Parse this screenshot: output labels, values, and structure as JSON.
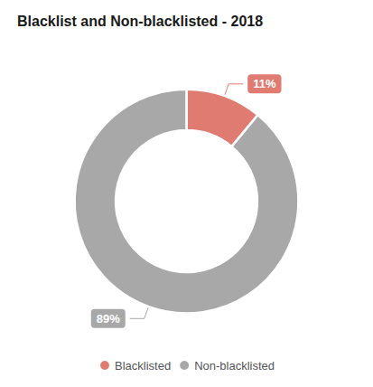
{
  "chart_data": {
    "type": "donut",
    "title": "Blacklist and Non-blacklisted - 2018",
    "categories": [
      "Blacklisted",
      "Non-blacklisted"
    ],
    "values": [
      11,
      89
    ],
    "value_labels": [
      "11%",
      "89%"
    ],
    "colors": [
      "#e07b72",
      "#a8a8a8"
    ],
    "data_labels": true,
    "legend": "bottom"
  }
}
